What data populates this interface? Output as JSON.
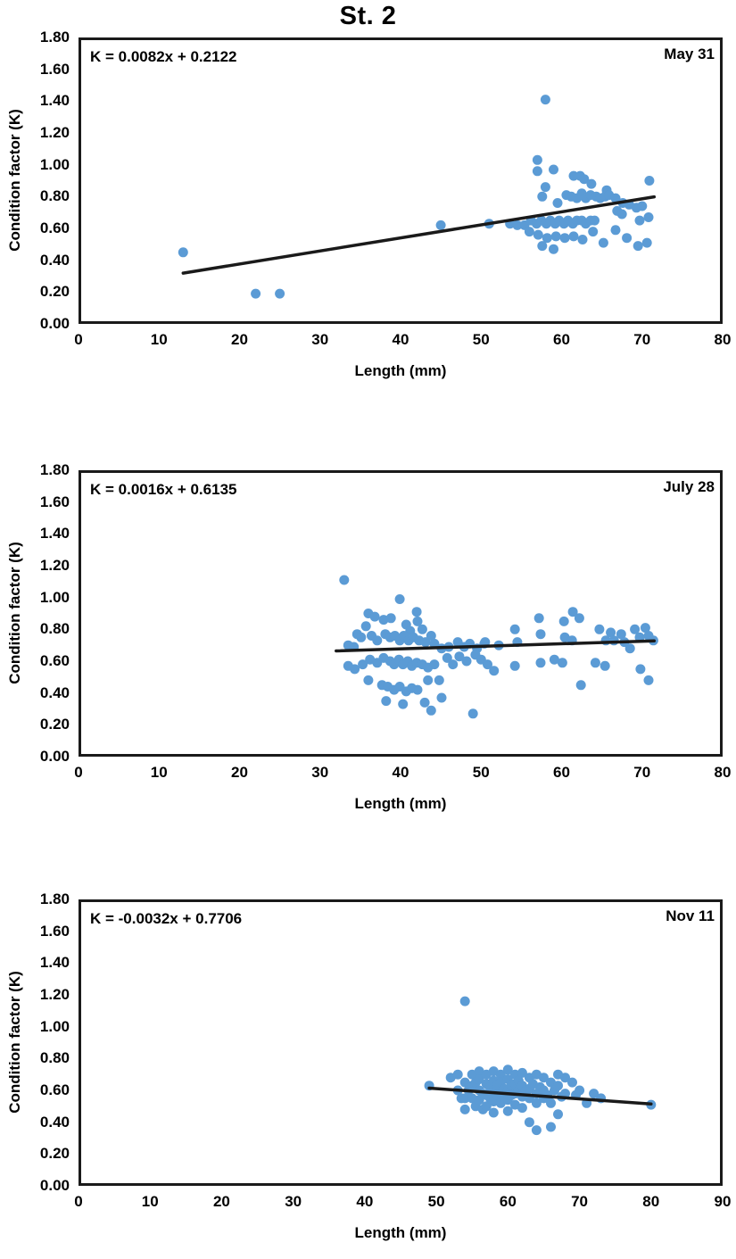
{
  "page_title": "St. 2",
  "colors": {
    "marker": "#5B9BD5",
    "trend_line": "#1a1a1a",
    "frame": "#1a1a1a",
    "text": "#000000"
  },
  "chart_data": [
    {
      "type": "scatter",
      "panel_label": "May 31",
      "equation": "K = 0.0082x + 0.2122",
      "xlabel": "Length (mm)",
      "ylabel": "Condition factor (K)",
      "xlim": [
        0,
        80
      ],
      "ylim": [
        0,
        1.8
      ],
      "xticks": [
        0,
        10,
        20,
        30,
        40,
        50,
        60,
        70,
        80
      ],
      "yticks": [
        0,
        0.2,
        0.4,
        0.6,
        0.8,
        1.0,
        1.2,
        1.4,
        1.6,
        1.8
      ],
      "grid": false,
      "legend": "none",
      "trendline": {
        "slope": 0.0082,
        "intercept": 0.2122,
        "x_start": 13,
        "x_end": 71.5
      },
      "points": [
        [
          13,
          0.45
        ],
        [
          22,
          0.19
        ],
        [
          25,
          0.19
        ],
        [
          45,
          0.62
        ],
        [
          51,
          0.63
        ],
        [
          58,
          1.41
        ],
        [
          57,
          1.03
        ],
        [
          57,
          0.96
        ],
        [
          59,
          0.97
        ],
        [
          58,
          0.86
        ],
        [
          61.5,
          0.93
        ],
        [
          62.3,
          0.93
        ],
        [
          62.8,
          0.91
        ],
        [
          63.7,
          0.88
        ],
        [
          65.6,
          0.84
        ],
        [
          70.9,
          0.9
        ],
        [
          57.6,
          0.8
        ],
        [
          59.5,
          0.76
        ],
        [
          60.6,
          0.81
        ],
        [
          61.2,
          0.8
        ],
        [
          61.9,
          0.79
        ],
        [
          62.5,
          0.82
        ],
        [
          63,
          0.79
        ],
        [
          63.6,
          0.81
        ],
        [
          64.3,
          0.8
        ],
        [
          64.8,
          0.79
        ],
        [
          65.4,
          0.8
        ],
        [
          65.9,
          0.81
        ],
        [
          66.7,
          0.79
        ],
        [
          67.6,
          0.76
        ],
        [
          68.4,
          0.75
        ],
        [
          69.3,
          0.73
        ],
        [
          70,
          0.74
        ],
        [
          53.6,
          0.63
        ],
        [
          54.5,
          0.62
        ],
        [
          55.4,
          0.62
        ],
        [
          56.2,
          0.65
        ],
        [
          56.9,
          0.63
        ],
        [
          57.5,
          0.65
        ],
        [
          58.1,
          0.63
        ],
        [
          58.6,
          0.65
        ],
        [
          59.2,
          0.63
        ],
        [
          59.7,
          0.65
        ],
        [
          60.3,
          0.63
        ],
        [
          60.8,
          0.65
        ],
        [
          61.4,
          0.63
        ],
        [
          61.9,
          0.65
        ],
        [
          62.5,
          0.65
        ],
        [
          63,
          0.63
        ],
        [
          63.6,
          0.65
        ],
        [
          64.1,
          0.65
        ],
        [
          66.9,
          0.71
        ],
        [
          67.5,
          0.69
        ],
        [
          69.7,
          0.65
        ],
        [
          70.8,
          0.67
        ],
        [
          56,
          0.58
        ],
        [
          57.1,
          0.56
        ],
        [
          58.2,
          0.54
        ],
        [
          59.3,
          0.55
        ],
        [
          60.4,
          0.54
        ],
        [
          61.5,
          0.55
        ],
        [
          62.6,
          0.53
        ],
        [
          63.9,
          0.58
        ],
        [
          65.2,
          0.51
        ],
        [
          66.7,
          0.59
        ],
        [
          68.1,
          0.54
        ],
        [
          69.5,
          0.49
        ],
        [
          70.6,
          0.51
        ],
        [
          59,
          0.47
        ],
        [
          57.6,
          0.49
        ]
      ]
    },
    {
      "type": "scatter",
      "panel_label": "July 28",
      "equation": "K = 0.0016x + 0.6135",
      "xlabel": "Length (mm)",
      "ylabel": "Condition factor (K)",
      "xlim": [
        0,
        80
      ],
      "ylim": [
        0,
        1.8
      ],
      "xticks": [
        0,
        10,
        20,
        30,
        40,
        50,
        60,
        70,
        80
      ],
      "yticks": [
        0,
        0.2,
        0.4,
        0.6,
        0.8,
        1.0,
        1.2,
        1.4,
        1.6,
        1.8
      ],
      "grid": false,
      "legend": "none",
      "trendline": {
        "slope": 0.0016,
        "intercept": 0.6135,
        "x_start": 32,
        "x_end": 71.5
      },
      "points": [
        [
          33,
          1.11
        ],
        [
          39.9,
          0.99
        ],
        [
          36,
          0.9
        ],
        [
          36.8,
          0.88
        ],
        [
          35.7,
          0.82
        ],
        [
          37.9,
          0.86
        ],
        [
          38.8,
          0.87
        ],
        [
          42,
          0.91
        ],
        [
          42.1,
          0.85
        ],
        [
          40.7,
          0.83
        ],
        [
          41.2,
          0.79
        ],
        [
          42.7,
          0.8
        ],
        [
          34.6,
          0.77
        ],
        [
          35.1,
          0.75
        ],
        [
          36.4,
          0.76
        ],
        [
          37.1,
          0.73
        ],
        [
          38.1,
          0.77
        ],
        [
          38.7,
          0.75
        ],
        [
          39.3,
          0.76
        ],
        [
          39.9,
          0.73
        ],
        [
          40.4,
          0.76
        ],
        [
          41,
          0.73
        ],
        [
          41.6,
          0.75
        ],
        [
          42.3,
          0.73
        ],
        [
          43.1,
          0.72
        ],
        [
          43.8,
          0.76
        ],
        [
          44.2,
          0.71
        ],
        [
          33.5,
          0.7
        ],
        [
          34.2,
          0.69
        ],
        [
          45.1,
          0.68
        ],
        [
          46,
          0.69
        ],
        [
          47.1,
          0.72
        ],
        [
          47.9,
          0.69
        ],
        [
          48.6,
          0.71
        ],
        [
          49.5,
          0.68
        ],
        [
          50.4,
          0.71
        ],
        [
          36.2,
          0.61
        ],
        [
          37.1,
          0.59
        ],
        [
          37.9,
          0.62
        ],
        [
          38.7,
          0.6
        ],
        [
          39.2,
          0.58
        ],
        [
          39.8,
          0.61
        ],
        [
          40.3,
          0.58
        ],
        [
          40.9,
          0.6
        ],
        [
          41.4,
          0.57
        ],
        [
          42,
          0.59
        ],
        [
          42.7,
          0.58
        ],
        [
          43.4,
          0.56
        ],
        [
          44.2,
          0.58
        ],
        [
          33.5,
          0.57
        ],
        [
          34.3,
          0.55
        ],
        [
          35.3,
          0.58
        ],
        [
          37.7,
          0.45
        ],
        [
          38.4,
          0.44
        ],
        [
          39.2,
          0.42
        ],
        [
          39.9,
          0.44
        ],
        [
          40.7,
          0.41
        ],
        [
          41.4,
          0.43
        ],
        [
          42.1,
          0.42
        ],
        [
          36,
          0.48
        ],
        [
          43.4,
          0.48
        ],
        [
          44.8,
          0.48
        ],
        [
          38.2,
          0.35
        ],
        [
          40.3,
          0.33
        ],
        [
          43,
          0.34
        ],
        [
          43.8,
          0.29
        ],
        [
          45.1,
          0.37
        ],
        [
          49,
          0.27
        ],
        [
          45.8,
          0.62
        ],
        [
          46.5,
          0.58
        ],
        [
          47.3,
          0.63
        ],
        [
          48.2,
          0.6
        ],
        [
          49.3,
          0.64
        ],
        [
          50,
          0.61
        ],
        [
          50.8,
          0.58
        ],
        [
          50.5,
          0.72
        ],
        [
          52.2,
          0.7
        ],
        [
          54.2,
          0.8
        ],
        [
          54.5,
          0.72
        ],
        [
          57.2,
          0.87
        ],
        [
          57.4,
          0.77
        ],
        [
          60.3,
          0.85
        ],
        [
          61.4,
          0.91
        ],
        [
          62.2,
          0.87
        ],
        [
          60.4,
          0.75
        ],
        [
          61.3,
          0.73
        ],
        [
          64.7,
          0.8
        ],
        [
          65.5,
          0.73
        ],
        [
          66.1,
          0.78
        ],
        [
          66.5,
          0.73
        ],
        [
          67.4,
          0.77
        ],
        [
          67.8,
          0.72
        ],
        [
          68.5,
          0.68
        ],
        [
          69.1,
          0.8
        ],
        [
          69.7,
          0.75
        ],
        [
          70.4,
          0.81
        ],
        [
          70.8,
          0.76
        ],
        [
          71.4,
          0.73
        ],
        [
          51.6,
          0.54
        ],
        [
          54.2,
          0.57
        ],
        [
          57.4,
          0.59
        ],
        [
          59.1,
          0.61
        ],
        [
          60.1,
          0.59
        ],
        [
          64.2,
          0.59
        ],
        [
          65.4,
          0.57
        ],
        [
          62.4,
          0.45
        ],
        [
          69.8,
          0.55
        ],
        [
          70.8,
          0.48
        ]
      ]
    },
    {
      "type": "scatter",
      "panel_label": "Nov 11",
      "equation": "K = -0.0032x + 0.7706",
      "xlabel": "Length (mm)",
      "ylabel": "Condition factor (K)",
      "xlim": [
        0,
        90
      ],
      "ylim": [
        0,
        1.8
      ],
      "xticks": [
        0,
        10,
        20,
        30,
        40,
        50,
        60,
        70,
        80,
        90
      ],
      "yticks": [
        0,
        0.2,
        0.4,
        0.6,
        0.8,
        1.0,
        1.2,
        1.4,
        1.6,
        1.8
      ],
      "grid": false,
      "legend": "none",
      "trendline": {
        "slope": -0.0032,
        "intercept": 0.7706,
        "x_start": 49,
        "x_end": 80
      },
      "points": [
        [
          49,
          0.63
        ],
        [
          54,
          1.16
        ],
        [
          80,
          0.51
        ],
        [
          52,
          0.68
        ],
        [
          53,
          0.7
        ],
        [
          53,
          0.6
        ],
        [
          53.5,
          0.55
        ],
        [
          54,
          0.65
        ],
        [
          54,
          0.55
        ],
        [
          54,
          0.48
        ],
        [
          54.5,
          0.6
        ],
        [
          55,
          0.7
        ],
        [
          55,
          0.63
        ],
        [
          55,
          0.55
        ],
        [
          55.5,
          0.5
        ],
        [
          55.5,
          0.65
        ],
        [
          56,
          0.72
        ],
        [
          56,
          0.67
        ],
        [
          56,
          0.6
        ],
        [
          56,
          0.54
        ],
        [
          56.5,
          0.58
        ],
        [
          56.5,
          0.48
        ],
        [
          57,
          0.7
        ],
        [
          57,
          0.64
        ],
        [
          57,
          0.57
        ],
        [
          57,
          0.5
        ],
        [
          57.5,
          0.62
        ],
        [
          57.5,
          0.55
        ],
        [
          58,
          0.72
        ],
        [
          58,
          0.66
        ],
        [
          58,
          0.6
        ],
        [
          58,
          0.53
        ],
        [
          58,
          0.46
        ],
        [
          58.5,
          0.63
        ],
        [
          58.5,
          0.57
        ],
        [
          59,
          0.7
        ],
        [
          59,
          0.65
        ],
        [
          59,
          0.58
        ],
        [
          59,
          0.52
        ],
        [
          59.5,
          0.61
        ],
        [
          59.5,
          0.55
        ],
        [
          60,
          0.73
        ],
        [
          60,
          0.67
        ],
        [
          60,
          0.6
        ],
        [
          60,
          0.54
        ],
        [
          60,
          0.47
        ],
        [
          60.5,
          0.63
        ],
        [
          60.5,
          0.57
        ],
        [
          61,
          0.7
        ],
        [
          61,
          0.64
        ],
        [
          61,
          0.58
        ],
        [
          61,
          0.51
        ],
        [
          61.5,
          0.66
        ],
        [
          61.5,
          0.6
        ],
        [
          62,
          0.71
        ],
        [
          62,
          0.63
        ],
        [
          62,
          0.56
        ],
        [
          62,
          0.49
        ],
        [
          62.5,
          0.6
        ],
        [
          63,
          0.68
        ],
        [
          63,
          0.61
        ],
        [
          63,
          0.55
        ],
        [
          63,
          0.4
        ],
        [
          63.5,
          0.64
        ],
        [
          64,
          0.7
        ],
        [
          64,
          0.58
        ],
        [
          64,
          0.52
        ],
        [
          64,
          0.35
        ],
        [
          64.5,
          0.62
        ],
        [
          65,
          0.68
        ],
        [
          65,
          0.6
        ],
        [
          65,
          0.55
        ],
        [
          65.5,
          0.57
        ],
        [
          66,
          0.65
        ],
        [
          66,
          0.52
        ],
        [
          66,
          0.37
        ],
        [
          66.5,
          0.6
        ],
        [
          67,
          0.7
        ],
        [
          67,
          0.63
        ],
        [
          67,
          0.45
        ],
        [
          67.5,
          0.56
        ],
        [
          68,
          0.68
        ],
        [
          68,
          0.58
        ],
        [
          69,
          0.65
        ],
        [
          69.5,
          0.57
        ],
        [
          70,
          0.6
        ],
        [
          71,
          0.52
        ],
        [
          72,
          0.58
        ],
        [
          73,
          0.55
        ]
      ]
    }
  ]
}
